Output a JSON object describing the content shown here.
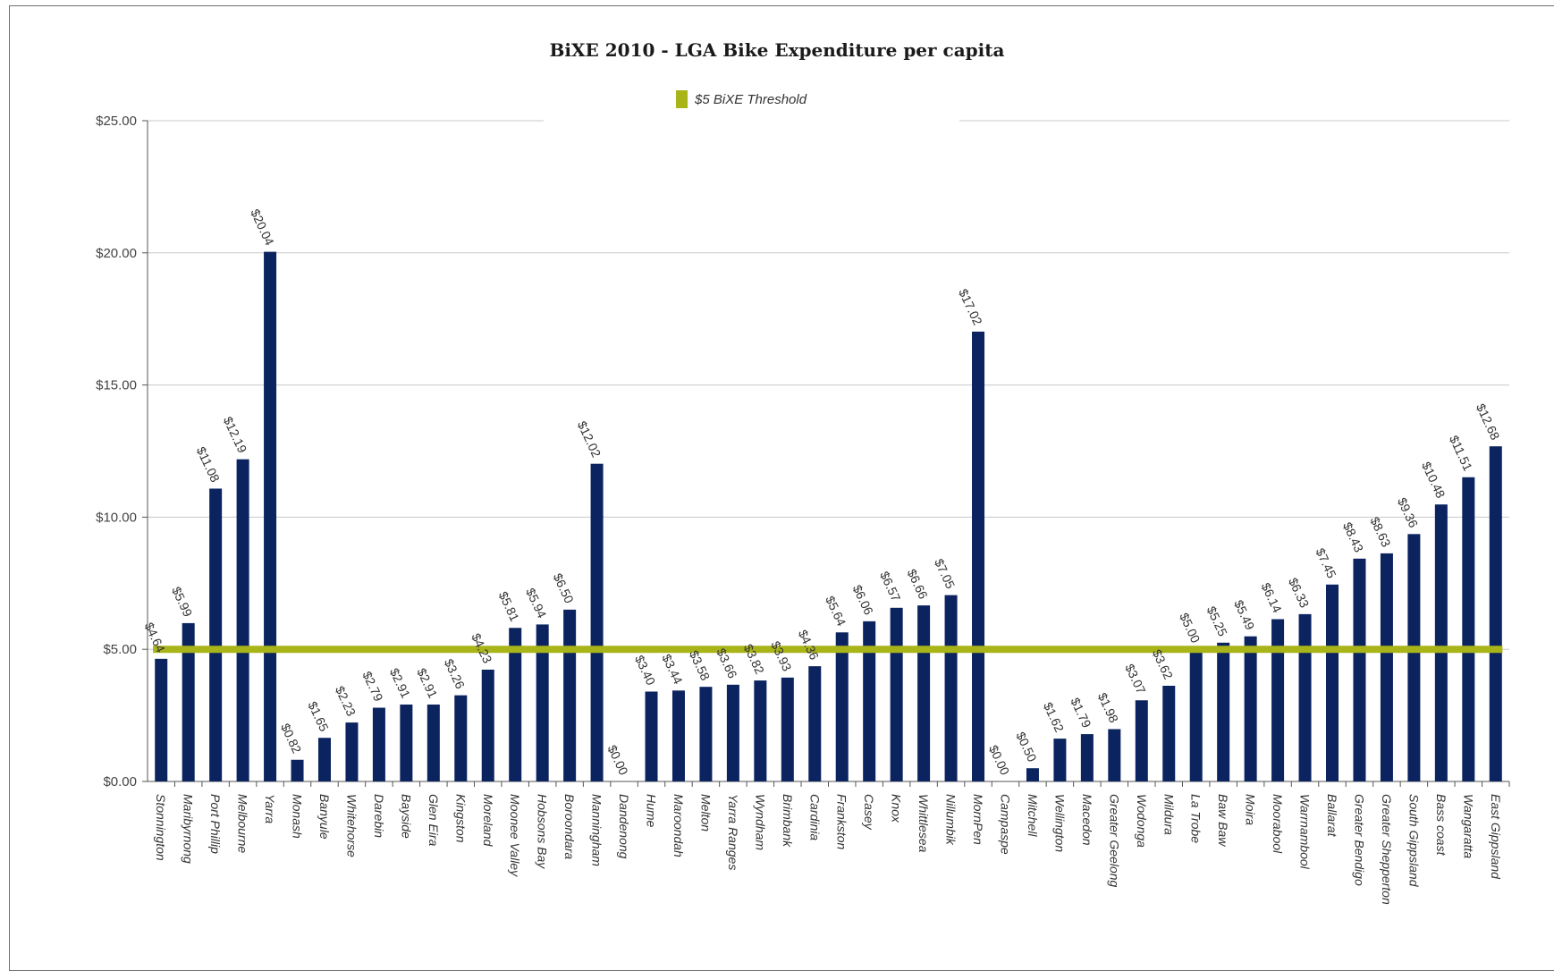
{
  "chart_data": {
    "type": "bar",
    "title": "BiXE 2010 - LGA Bike Expenditure per capita",
    "xlabel": "",
    "ylabel": "",
    "ylim": [
      0,
      25
    ],
    "y_ticks": [
      "$0.00",
      "$5.00",
      "$10.00",
      "$15.00",
      "$20.00",
      "$25.00"
    ],
    "y_tick_values": [
      0,
      5,
      10,
      15,
      20,
      25
    ],
    "grid": true,
    "legend": {
      "placement": "top-center",
      "entries": [
        "$5 BiXE Threshold"
      ]
    },
    "categories": [
      "Stonnington",
      "Maribyrnong",
      "Port Phillip",
      "Melbourne",
      "Yarra",
      "Monash",
      "Banyule",
      "Whitehorse",
      "Darebin",
      "Bayside",
      "Glen Eira",
      "Kingston",
      "Moreland",
      "Moonee Valley",
      "Hobsons Bay",
      "Boroondara",
      "Manningham",
      "Dandenong",
      "Hume",
      "Maroondah",
      "Melton",
      "Yarra Ranges",
      "Wyndham",
      "Brimbank",
      "Cardinia",
      "Frankston",
      "Casey",
      "Knox",
      "Whittlesea",
      "Nillumbik",
      "MornPen",
      "Campaspe",
      "Mitchell",
      "Wellington",
      "Macedon",
      "Greater Geelong",
      "Wodonga",
      "Mildura",
      "La Trobe",
      "Baw Baw",
      "Moira",
      "Moorabool",
      "Warrnambool",
      "Ballarat",
      "Greater Bendigo",
      "Greater Shepperton",
      "South Gippsland",
      "Bass coast",
      "Wangaratta",
      "East Gippsland"
    ],
    "series": [
      {
        "values": [
          4.64,
          5.99,
          11.08,
          12.19,
          20.04,
          0.82,
          1.65,
          2.23,
          2.79,
          2.91,
          2.91,
          3.26,
          4.23,
          5.81,
          5.94,
          6.5,
          12.02,
          0.0,
          3.4,
          3.44,
          3.58,
          3.66,
          3.82,
          3.93,
          4.36,
          5.64,
          6.06,
          6.57,
          6.66,
          7.05,
          17.02,
          0.0,
          0.5,
          1.62,
          1.79,
          1.98,
          3.07,
          3.62,
          5.0,
          5.25,
          5.49,
          6.14,
          6.33,
          7.45,
          8.43,
          8.63,
          9.36,
          10.48,
          11.51,
          12.68
        ],
        "data_labels": [
          "$4.64",
          "$5.99",
          "$11.08",
          "$12.19",
          "$20.04",
          "$0.82",
          "$1.65",
          "$2.23",
          "$2.79",
          "$2.91",
          "$2.91",
          "$3.26",
          "$4.23",
          "$5.81",
          "$5.94",
          "$6.50",
          "$12.02",
          "$0.00",
          "$3.40",
          "$3.44",
          "$3.58",
          "$3.66",
          "$3.82",
          "$3.93",
          "$4.36",
          "$5.64",
          "$6.06",
          "$6.57",
          "$6.66",
          "$7.05",
          "$17.02",
          "$0.00",
          "$0.50",
          "$1.62",
          "$1.79",
          "$1.98",
          "$3.07",
          "$3.62",
          "$5.00",
          "$5.25",
          "$5.49",
          "$6.14",
          "$6.33",
          "$7.45",
          "$8.43",
          "$8.63",
          "$9.36",
          "$10.48",
          "$11.51",
          "$12.68"
        ]
      },
      {
        "name": "$5 BiXE Threshold",
        "type": "line",
        "value": 5
      }
    ],
    "colors": {
      "bars": "#0b2460",
      "threshold": "#a8b418",
      "grid": "#c8c8c8",
      "axis": "#555555"
    }
  }
}
